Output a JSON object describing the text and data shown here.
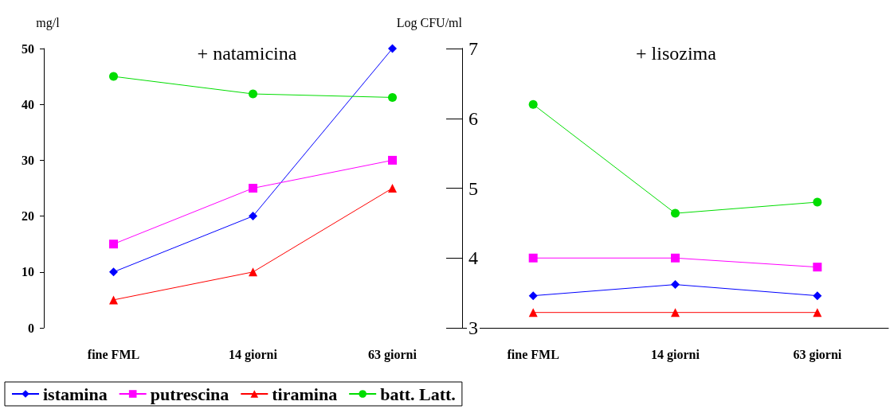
{
  "chart_data": [
    {
      "type": "line",
      "title": "+ natamicina",
      "ylabel": "mg/l",
      "y2label": "Log CFU/ml",
      "categories": [
        "fine FML",
        "14 giorni",
        "63 giorni"
      ],
      "ylim": [
        0,
        50
      ],
      "yticks": [
        0,
        10,
        20,
        30,
        40,
        50
      ],
      "y2lim": [
        3,
        7
      ],
      "y2ticks": [
        3,
        4,
        5,
        6,
        7
      ],
      "legend": "bottom",
      "grid": false,
      "series": [
        {
          "name": "istamina",
          "color": "#0000ff",
          "marker": "diamond",
          "values": [
            10,
            20,
            50
          ]
        },
        {
          "name": "putrescina",
          "color": "#ff00ff",
          "marker": "square",
          "values": [
            15,
            25,
            30
          ]
        },
        {
          "name": "tiramina",
          "color": "#ff0000",
          "marker": "triangle",
          "values": [
            5,
            10,
            25
          ]
        },
        {
          "name": "batt. Latt.",
          "color": "#00dd00",
          "marker": "circle",
          "axis": "y2",
          "values": [
            6.6,
            6.35,
            6.3
          ]
        }
      ]
    },
    {
      "type": "line",
      "title": "+ lisozima",
      "categories": [
        "fine FML",
        "14 giorni",
        "63 giorni"
      ],
      "ylim": [
        3,
        7
      ],
      "yticks": [
        3,
        4,
        5,
        6,
        7
      ],
      "tick_labels": "x",
      "legend": false,
      "grid": false,
      "series": [
        {
          "color": "#0000ff",
          "marker": "diamond",
          "values": [
            3.46,
            3.62,
            3.46
          ]
        },
        {
          "color": "#ff00ff",
          "marker": "square",
          "values": [
            4.0,
            4.0,
            3.87
          ]
        },
        {
          "color": "#ff0000",
          "marker": "triangle",
          "values": [
            3.22,
            3.22,
            3.22
          ]
        },
        {
          "color": "#00dd00",
          "marker": "circle",
          "values": [
            6.2,
            4.64,
            4.8
          ]
        }
      ]
    }
  ]
}
